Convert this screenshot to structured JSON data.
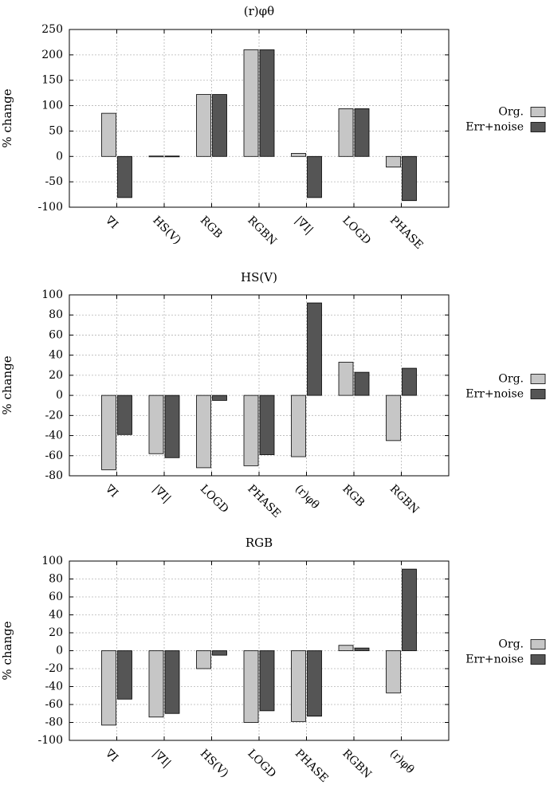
{
  "colors": {
    "org": "#c6c6c6",
    "err": "#555555"
  },
  "chart_data": [
    {
      "type": "bar",
      "title": "(r)φθ",
      "ylabel": "% change",
      "xlabel": "",
      "ylim": [
        -100,
        250
      ],
      "yticks": [
        -100,
        -50,
        0,
        50,
        100,
        150,
        200,
        250
      ],
      "grid": true,
      "legend": "right",
      "categories": [
        "∇I",
        "HS(V)",
        "RGB",
        "RGBN",
        "|∇I|",
        "LOGD",
        "PHASE"
      ],
      "series": [
        {
          "name": "Org.",
          "values": [
            85,
            -1,
            122,
            210,
            6,
            94,
            -21
          ]
        },
        {
          "name": "Err+noise",
          "values": [
            -81,
            -1,
            122,
            210,
            -81,
            94,
            -87
          ]
        }
      ]
    },
    {
      "type": "bar",
      "title": "HS(V)",
      "ylabel": "% change",
      "xlabel": "",
      "ylim": [
        -80,
        100
      ],
      "yticks": [
        -80,
        -60,
        -40,
        -20,
        0,
        20,
        40,
        60,
        80,
        100
      ],
      "grid": true,
      "legend": "right",
      "categories": [
        "∇I",
        "|∇I|",
        "LOGD",
        "PHASE",
        "(r)φθ",
        "RGB",
        "RGBN"
      ],
      "series": [
        {
          "name": "Org.",
          "values": [
            -74,
            -58,
            -72,
            -70,
            -61,
            33,
            -45
          ]
        },
        {
          "name": "Err+noise",
          "values": [
            -39,
            -62,
            -5,
            -59,
            92,
            23,
            27
          ]
        }
      ]
    },
    {
      "type": "bar",
      "title": "RGB",
      "ylabel": "% change",
      "xlabel": "",
      "ylim": [
        -100,
        100
      ],
      "yticks": [
        -100,
        -80,
        -60,
        -40,
        -20,
        0,
        20,
        40,
        60,
        80,
        100
      ],
      "grid": true,
      "legend": "right",
      "categories": [
        "∇I",
        "|∇I|",
        "HS(V)",
        "LOGD",
        "PHASE",
        "RGBN",
        "(r)φθ"
      ],
      "series": [
        {
          "name": "Org.",
          "values": [
            -83,
            -74,
            -20,
            -80,
            -79,
            6,
            -47
          ]
        },
        {
          "name": "Err+noise",
          "values": [
            -54,
            -70,
            -5,
            -67,
            -73,
            3,
            91
          ]
        }
      ]
    }
  ]
}
